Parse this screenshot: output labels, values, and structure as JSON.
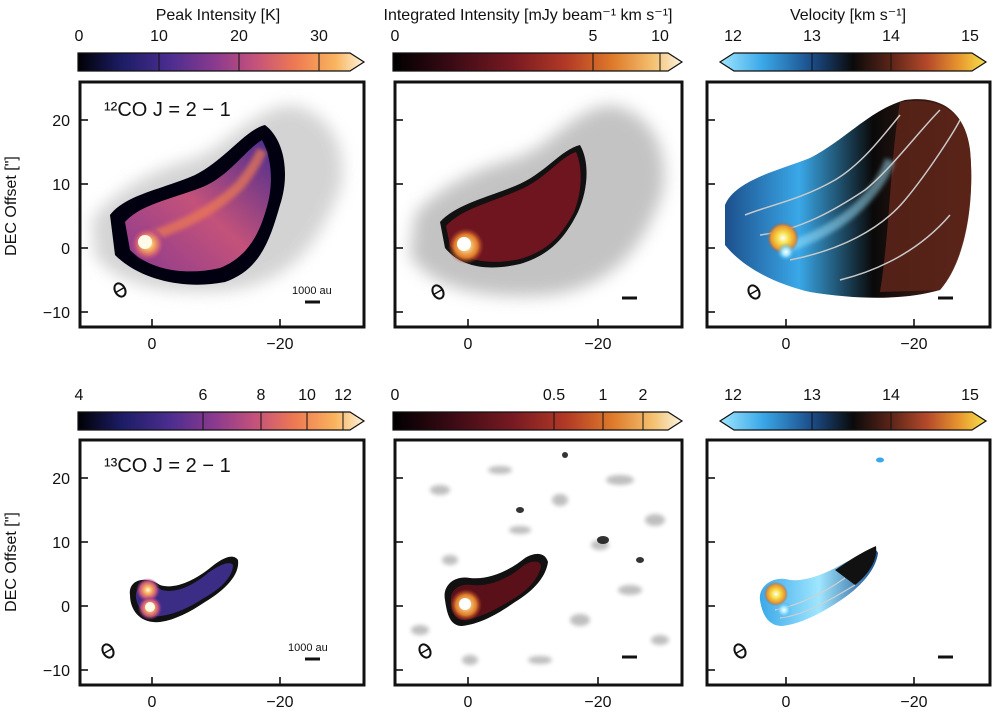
{
  "rows": [
    {
      "molecule_label": "¹²CO J = 2 − 1",
      "yaxis_label": "DEC Offset [\"]",
      "y_ticks": [
        "20",
        "10",
        "0",
        "−10"
      ],
      "x_ticks": [
        "0",
        "−20"
      ],
      "scale_bar_label": "1000 au",
      "colorbars": [
        {
          "title": "Peak Intensity [K]",
          "ticks": [
            "0",
            "10",
            "20",
            "30"
          ],
          "range": [
            0,
            33
          ]
        },
        {
          "title": "Integrated Intensity [mJy beam⁻¹ km s⁻¹]",
          "ticks": [
            "0",
            "5",
            "10"
          ],
          "range": [
            0,
            10.5
          ]
        },
        {
          "title": "Velocity [km s⁻¹]",
          "ticks": [
            "12",
            "13",
            "14",
            "15"
          ],
          "range": [
            11.8,
            15.2
          ]
        }
      ]
    },
    {
      "molecule_label": "¹³CO J = 2 − 1",
      "yaxis_label": "DEC Offset [\"]",
      "y_ticks": [
        "20",
        "10",
        "0",
        "−10"
      ],
      "x_ticks": [
        "0",
        "−20"
      ],
      "scale_bar_label": "1000 au",
      "colorbars": [
        {
          "title": "",
          "ticks": [
            "4",
            "6",
            "8",
            "10",
            "12"
          ],
          "range": [
            4,
            12.5
          ]
        },
        {
          "title": "",
          "ticks": [
            "0",
            "0.5",
            "1",
            "2"
          ],
          "range": [
            0,
            2.3
          ]
        },
        {
          "title": "",
          "ticks": [
            "12",
            "13",
            "14",
            "15"
          ],
          "range": [
            11.8,
            15.2
          ]
        }
      ]
    }
  ],
  "axes": {
    "x_range": [
      11,
      -33
    ],
    "y_range": [
      -12,
      26
    ]
  },
  "colors": {
    "inferno_like": [
      "#000004",
      "#1b1c64",
      "#4b2d8f",
      "#8b3a8f",
      "#c4527a",
      "#ee7a52",
      "#f9b45e",
      "#fdf3dd"
    ],
    "integrated": [
      "#000000",
      "#3a0a14",
      "#7a1a22",
      "#b23a26",
      "#de7a2a",
      "#f4c170",
      "#fbf3e0"
    ],
    "velocity": [
      "#9fe6ff",
      "#3aa8e8",
      "#1c4f8c",
      "#0a0a0a",
      "#5a2418",
      "#b54a2a",
      "#e8972e",
      "#f7e04a"
    ],
    "frame": "#111111"
  }
}
